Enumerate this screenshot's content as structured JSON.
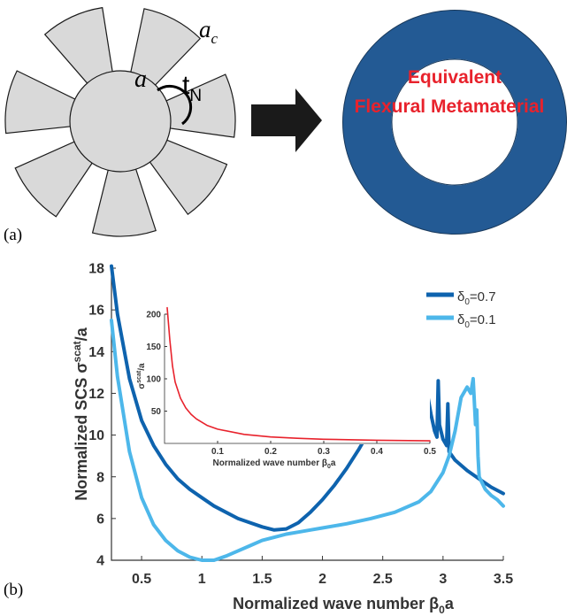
{
  "panel_a": {
    "label": "(a)",
    "symbol_a": "a",
    "symbol_ac_base": "a",
    "symbol_ac_sub": "c",
    "symbol_tN_base": "t",
    "symbol_tN_sub": "N",
    "ring_text_line1": "Equivalent",
    "ring_text_line2": "Flexural Metamaterial",
    "colors": {
      "fins": "#d9d9d9",
      "ring": "#235a94",
      "ring_text": "#e8222c",
      "arrow": "#1a1a1a"
    }
  },
  "panel_b": {
    "label": "(b)",
    "ylabel_prefix": "Normalized SCS σ",
    "ylabel_sup": "scat",
    "ylabel_suffix": "/a",
    "xlabel_prefix": "Normalized wave number β",
    "xlabel_sub": "0",
    "xlabel_suffix": "a",
    "legend": [
      {
        "sym": "δ",
        "sub": "0",
        "text": "=0.7"
      },
      {
        "sym": "δ",
        "sub": "0",
        "text": "=0.1"
      }
    ]
  },
  "chart_data": [
    {
      "type": "line",
      "xlim": [
        0.25,
        3.5
      ],
      "ylim": [
        4,
        18
      ],
      "xticks": [
        0.5,
        1,
        1.5,
        2,
        2.5,
        3,
        3.5
      ],
      "xtick_labels": [
        "0.5",
        "1",
        "1.5",
        "2",
        "2.5",
        "3",
        "3.5"
      ],
      "yticks": [
        4,
        6,
        8,
        10,
        12,
        14,
        16,
        18
      ],
      "ytick_labels": [
        "4",
        "6",
        "8",
        "10",
        "12",
        "14",
        "16",
        "18"
      ],
      "legend_position": "top-right",
      "grid": false,
      "series": [
        {
          "name": "δ0=0.7",
          "color": "#0e63ae",
          "x": [
            0.25,
            0.3,
            0.4,
            0.5,
            0.6,
            0.7,
            0.8,
            0.9,
            1.0,
            1.1,
            1.2,
            1.3,
            1.4,
            1.5,
            1.6,
            1.7,
            1.8,
            1.9,
            2.0,
            2.1,
            2.2,
            2.3,
            2.4,
            2.5,
            2.55,
            2.6,
            2.65,
            2.7,
            2.75,
            2.8,
            2.83,
            2.86,
            2.9,
            2.93,
            2.95,
            2.96,
            2.97,
            3.0,
            3.03,
            3.04,
            3.05,
            3.1,
            3.2,
            3.3,
            3.4,
            3.5
          ],
          "y": [
            18.1,
            15.8,
            12.7,
            10.7,
            9.5,
            8.6,
            7.9,
            7.4,
            7.0,
            6.6,
            6.3,
            6.0,
            5.8,
            5.6,
            5.45,
            5.5,
            5.8,
            6.3,
            6.9,
            7.6,
            8.4,
            9.3,
            10.3,
            11.5,
            12.2,
            12.9,
            13.0,
            12.7,
            12.7,
            13.5,
            13.6,
            12.3,
            11.0,
            10.2,
            9.9,
            12.6,
            10.5,
            9.8,
            9.5,
            11.5,
            9.2,
            8.8,
            8.3,
            7.9,
            7.5,
            7.2
          ]
        },
        {
          "name": "δ0=0.1",
          "color": "#4db7ea",
          "x": [
            0.25,
            0.3,
            0.4,
            0.5,
            0.6,
            0.7,
            0.8,
            0.9,
            1.0,
            1.05,
            1.1,
            1.2,
            1.3,
            1.4,
            1.5,
            1.6,
            1.7,
            1.8,
            1.9,
            2.0,
            2.2,
            2.4,
            2.6,
            2.8,
            2.9,
            3.0,
            3.05,
            3.1,
            3.15,
            3.2,
            3.23,
            3.25,
            3.27,
            3.28,
            3.29,
            3.3,
            3.35,
            3.4,
            3.45,
            3.5
          ],
          "y": [
            15.5,
            12.8,
            9.2,
            7.0,
            5.7,
            4.95,
            4.45,
            4.15,
            4.0,
            3.95,
            4.0,
            4.2,
            4.45,
            4.7,
            4.95,
            5.1,
            5.25,
            5.35,
            5.45,
            5.55,
            5.75,
            6.0,
            6.3,
            6.8,
            7.3,
            8.2,
            9.0,
            10.2,
            11.8,
            12.3,
            12.0,
            12.7,
            10.5,
            11.2,
            9.0,
            8.0,
            7.4,
            7.1,
            6.9,
            6.6
          ]
        }
      ]
    },
    {
      "type": "line",
      "xlim": [
        0,
        0.5
      ],
      "ylim": [
        0,
        200
      ],
      "xticks": [
        0.1,
        0.2,
        0.3,
        0.4,
        0.5
      ],
      "xtick_labels": [
        "0.1",
        "0.2",
        "0.3",
        "0.4",
        "0.5"
      ],
      "yticks": [
        50,
        100,
        150,
        200
      ],
      "ytick_labels": [
        "50",
        "100",
        "150",
        "200"
      ],
      "grid": false,
      "xlabel_prefix": "Normalized wave number β",
      "xlabel_sub": "0",
      "xlabel_suffix": "a",
      "ylabel_prefix": "σ",
      "ylabel_sup": "scat",
      "ylabel_suffix": "/a",
      "series": [
        {
          "color": "#e8222c",
          "x": [
            0.005,
            0.01,
            0.015,
            0.02,
            0.03,
            0.04,
            0.05,
            0.06,
            0.08,
            0.1,
            0.15,
            0.2,
            0.25,
            0.3,
            0.4,
            0.5
          ],
          "y": [
            210,
            160,
            120,
            95,
            70,
            55,
            45,
            38,
            28,
            22,
            14,
            10,
            8,
            6.5,
            5,
            4
          ]
        }
      ]
    }
  ]
}
